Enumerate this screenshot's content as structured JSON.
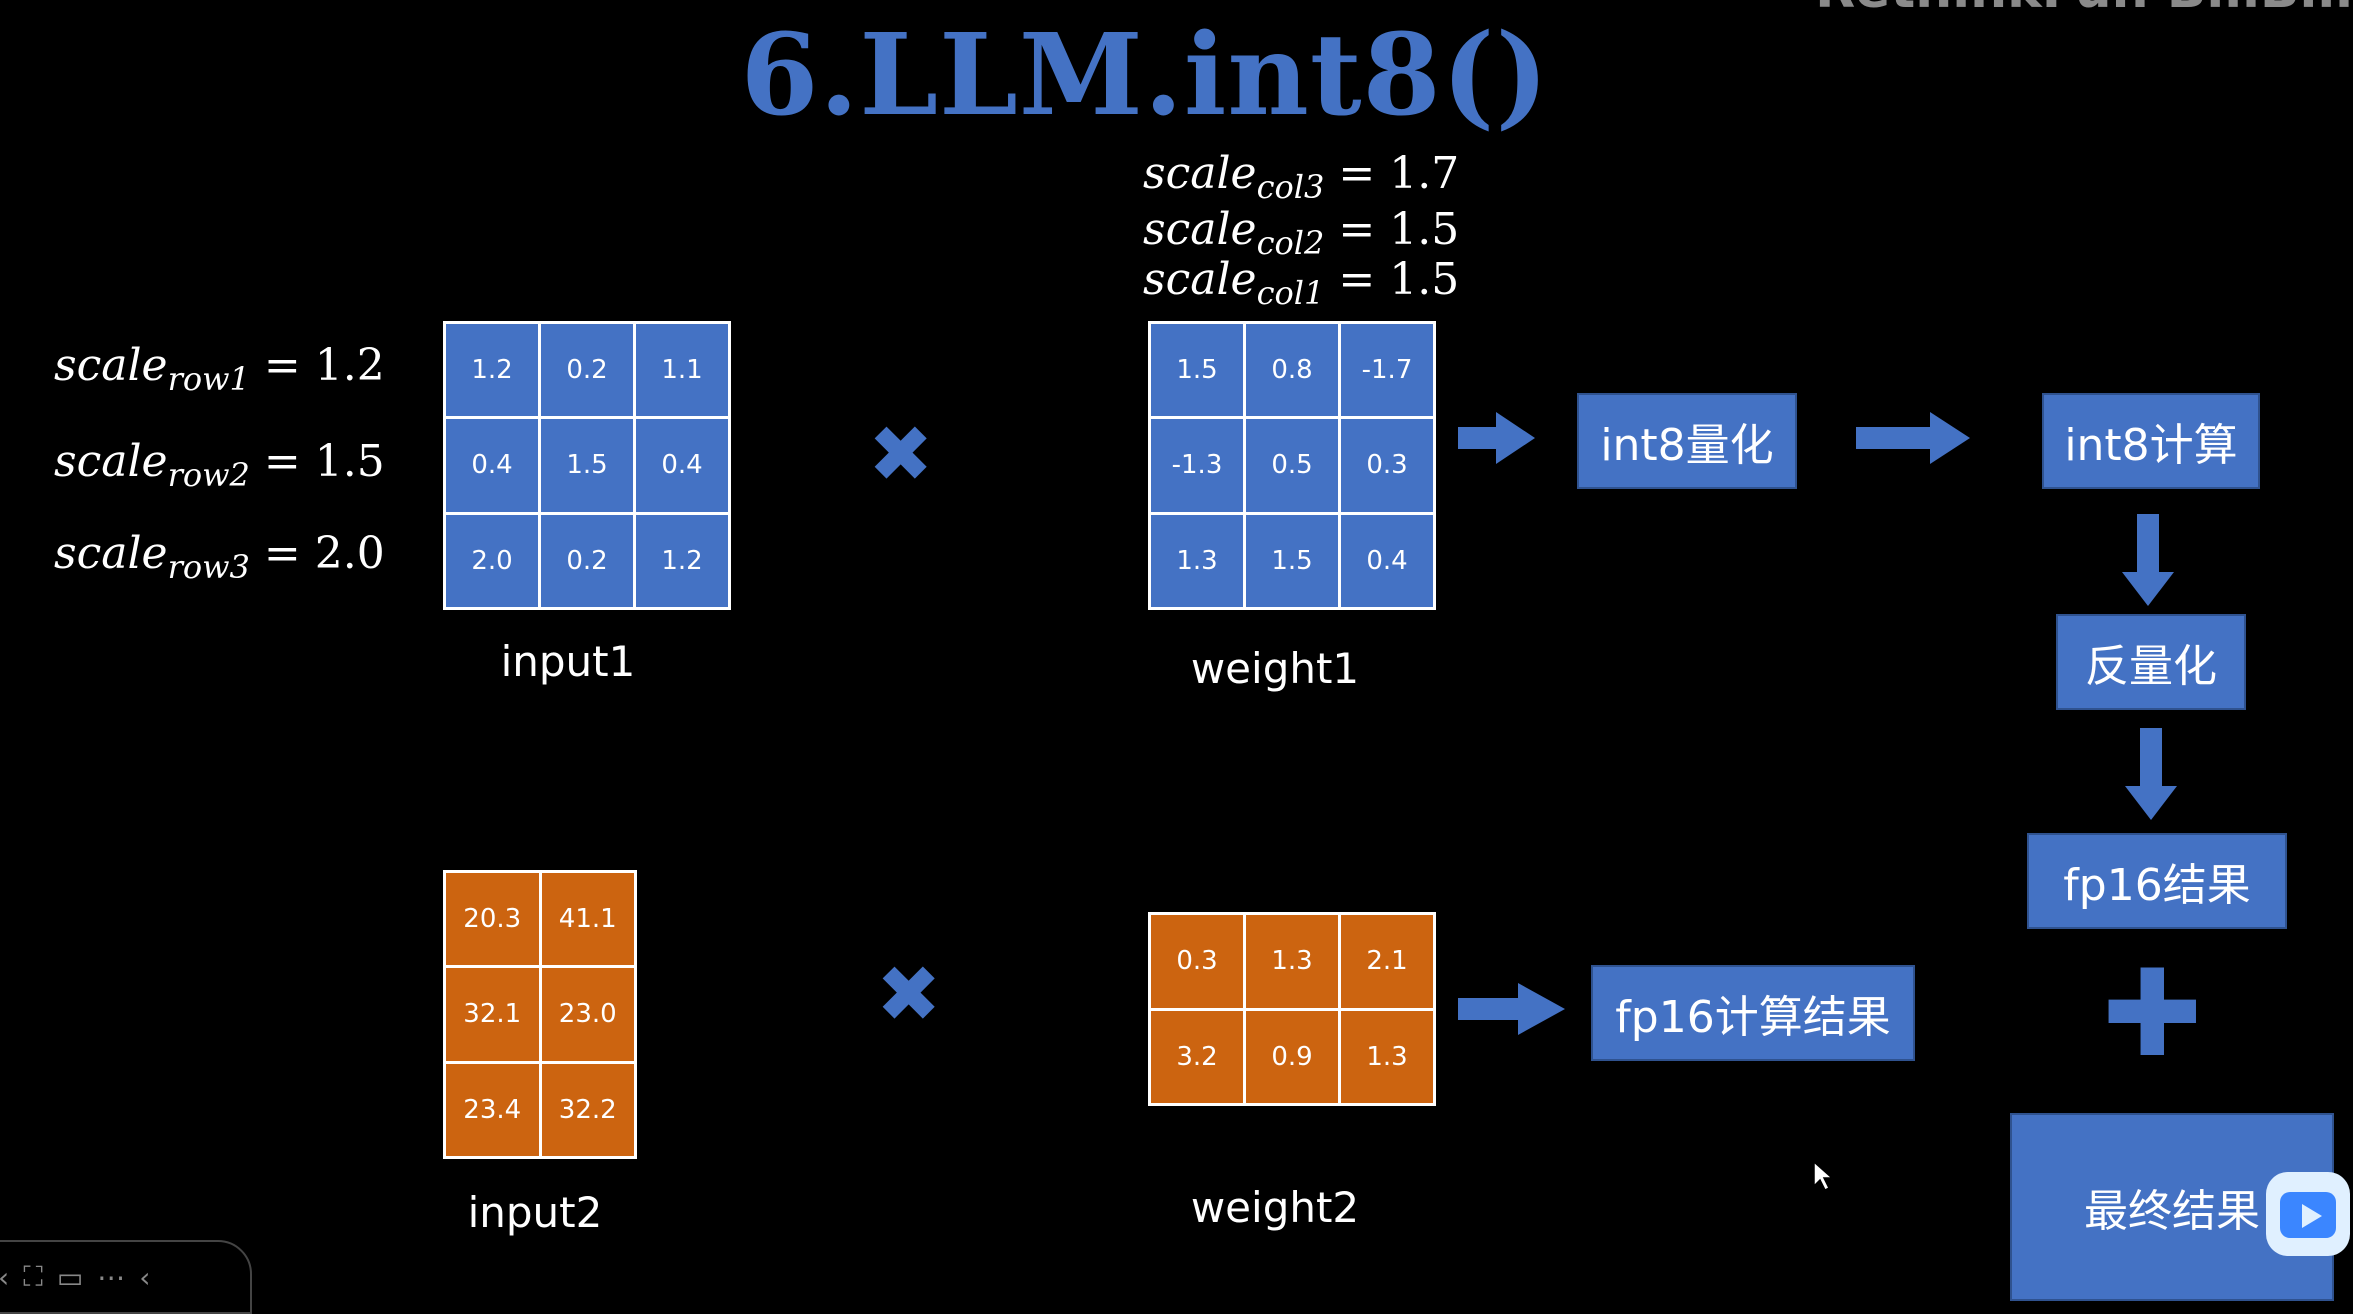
{
  "title": "6.LLM.int8()",
  "watermark": "RethinkFun  BiliBili",
  "row_scales": [
    {
      "name": "scale",
      "sub": "row1",
      "value": "= 1.2"
    },
    {
      "name": "scale",
      "sub": "row2",
      "value": "= 1.5"
    },
    {
      "name": "scale",
      "sub": "row3",
      "value": "= 2.0"
    }
  ],
  "col_scales": [
    {
      "name": "scale",
      "sub": "col3",
      "value": "= 1.7"
    },
    {
      "name": "scale",
      "sub": "col2",
      "value": "= 1.5"
    },
    {
      "name": "scale",
      "sub": "col1",
      "value": "= 1.5"
    }
  ],
  "input1": {
    "label": "input1",
    "rows": [
      [
        "1.2",
        "0.2",
        "1.1"
      ],
      [
        "0.4",
        "1.5",
        "0.4"
      ],
      [
        "2.0",
        "0.2",
        "1.2"
      ]
    ]
  },
  "weight1": {
    "label": "weight1",
    "rows": [
      [
        "1.5",
        "0.8",
        "-1.7"
      ],
      [
        "-1.3",
        "0.5",
        "0.3"
      ],
      [
        "1.3",
        "1.5",
        "0.4"
      ]
    ]
  },
  "input2": {
    "label": "input2",
    "rows": [
      [
        "20.3",
        "41.1"
      ],
      [
        "32.1",
        "23.0"
      ],
      [
        "23.4",
        "32.2"
      ]
    ]
  },
  "weight2": {
    "label": "weight2",
    "rows": [
      [
        "0.3",
        "1.3",
        "2.1"
      ],
      [
        "3.2",
        "0.9",
        "1.3"
      ]
    ]
  },
  "boxes": {
    "int8_quant": "int8量化",
    "int8_compute": "int8计算",
    "dequant": "反量化",
    "fp16_result": "fp16结果",
    "fp16_compute_result": "fp16计算结果",
    "final_result": "最终结果"
  },
  "colors": {
    "blue": "#4472c4",
    "orange": "#cc6410",
    "background": "#000000"
  }
}
